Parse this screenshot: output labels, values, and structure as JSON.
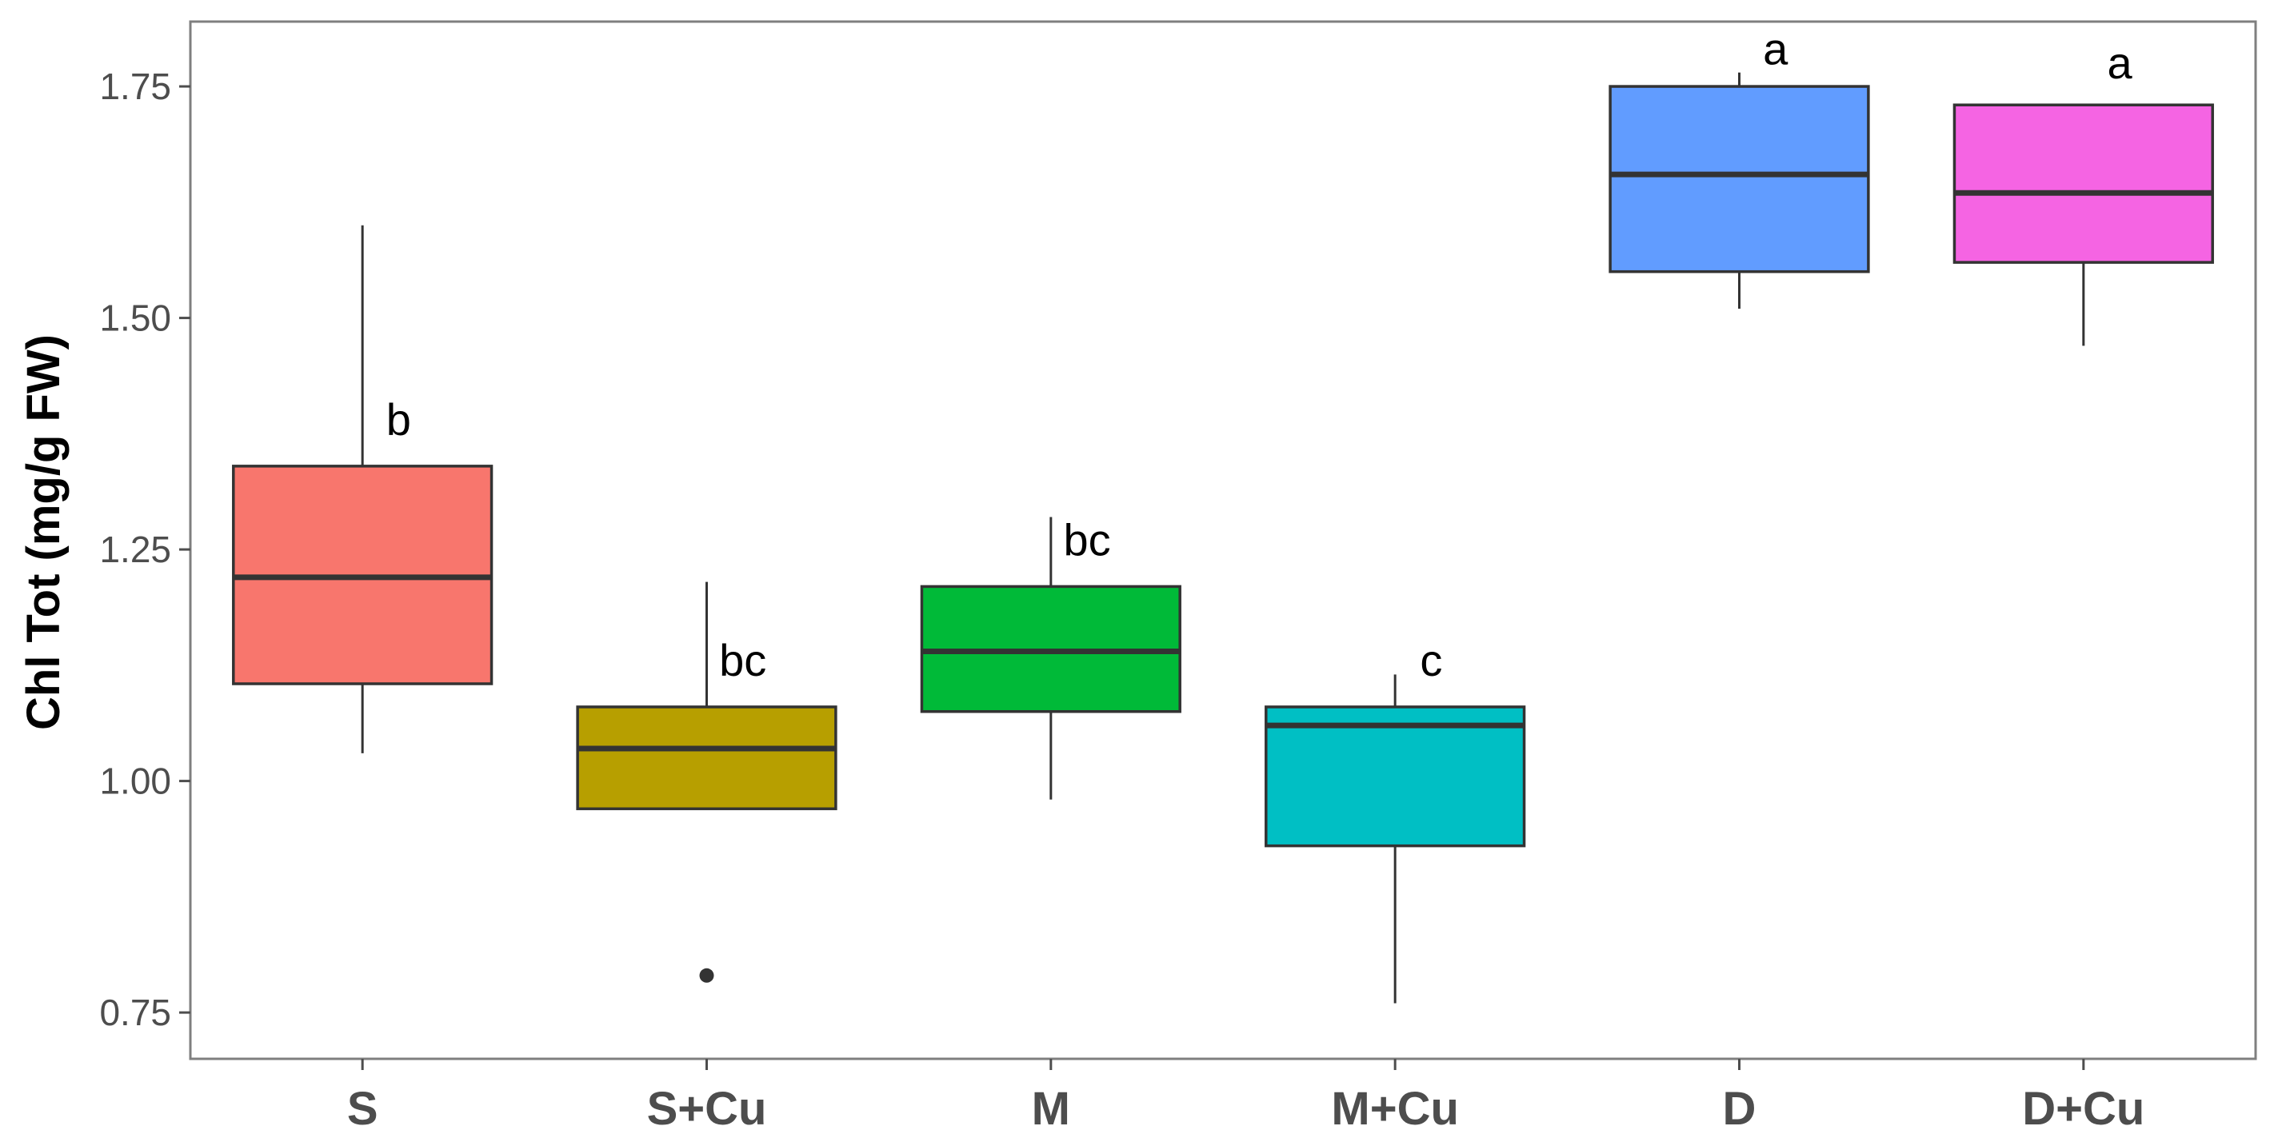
{
  "chart_data": {
    "type": "box",
    "title": "",
    "xlabel": "",
    "ylabel": "Chl Tot (mg/g FW)",
    "ylim": [
      0.7,
      1.82
    ],
    "yticks": [
      0.75,
      1.0,
      1.25,
      1.5,
      1.75
    ],
    "ytick_labels": [
      "0.75",
      "1.00",
      "1.25",
      "1.50",
      "1.75"
    ],
    "categories": [
      "S",
      "S+Cu",
      "M",
      "M+Cu",
      "D",
      "D+Cu"
    ],
    "boxes": [
      {
        "category": "S",
        "whisker_low": 1.03,
        "q1": 1.105,
        "median": 1.22,
        "q3": 1.34,
        "whisker_high": 1.6,
        "outliers": [],
        "color": "#F8766D",
        "letter": "b",
        "letter_y": 1.39
      },
      {
        "category": "S+Cu",
        "whisker_low": 0.97,
        "q1": 0.97,
        "median": 1.035,
        "q3": 1.08,
        "whisker_high": 1.215,
        "outliers": [
          0.79
        ],
        "color": "#B79F00",
        "letter": "bc",
        "letter_y": 1.13
      },
      {
        "category": "M",
        "whisker_low": 0.98,
        "q1": 1.075,
        "median": 1.14,
        "q3": 1.21,
        "whisker_high": 1.285,
        "outliers": [],
        "color": "#00BA38",
        "letter": "bc",
        "letter_y": 1.26
      },
      {
        "category": "M+Cu",
        "whisker_low": 0.76,
        "q1": 0.93,
        "median": 1.06,
        "q3": 1.08,
        "whisker_high": 1.115,
        "outliers": [],
        "color": "#00BFC4",
        "letter": "c",
        "letter_y": 1.13
      },
      {
        "category": "D",
        "whisker_low": 1.51,
        "q1": 1.55,
        "median": 1.655,
        "q3": 1.75,
        "whisker_high": 1.765,
        "outliers": [],
        "color": "#619CFF",
        "letter": "a",
        "letter_y": 1.79
      },
      {
        "category": "D+Cu",
        "whisker_low": 1.47,
        "q1": 1.56,
        "median": 1.635,
        "q3": 1.73,
        "whisker_high": 1.73,
        "outliers": [],
        "color": "#F564E3",
        "letter": "a",
        "letter_y": 1.775
      }
    ],
    "grid": false,
    "legend": "none"
  }
}
